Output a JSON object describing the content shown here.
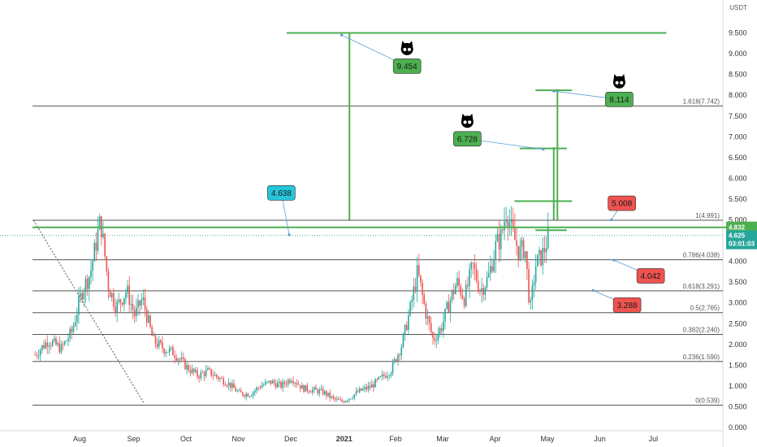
{
  "chart_data": {
    "type": "candlestick",
    "currency": "USDT",
    "ylim": [
      0,
      10
    ],
    "yticks": [
      "0.000",
      "0.500",
      "1.000",
      "1.500",
      "2.000",
      "2.500",
      "3.000",
      "3.500",
      "4.000",
      "4.500",
      "5.000",
      "5.500",
      "6.000",
      "6.500",
      "7.000",
      "7.500",
      "8.000",
      "8.500",
      "9.000",
      "9.500",
      "10.000"
    ],
    "xticks": [
      {
        "label": "Aug",
        "t": 0.9
      },
      {
        "label": "Sep",
        "t": 1.93
      },
      {
        "label": "Oct",
        "t": 2.93
      },
      {
        "label": "Nov",
        "t": 3.93
      },
      {
        "label": "Dec",
        "t": 4.93
      },
      {
        "label": "2021",
        "t": 5.95,
        "bold": true
      },
      {
        "label": "Feb",
        "t": 6.93
      },
      {
        "label": "Mar",
        "t": 7.83
      },
      {
        "label": "Apr",
        "t": 8.83
      },
      {
        "label": "May",
        "t": 9.83
      },
      {
        "label": "Jun",
        "t": 10.83
      },
      {
        "label": "Jul",
        "t": 11.85
      }
    ],
    "price_path": [
      [
        0.05,
        1.75
      ],
      [
        0.3,
        2.1
      ],
      [
        0.55,
        1.9
      ],
      [
        0.75,
        2.3
      ],
      [
        0.95,
        3.3
      ],
      [
        1.1,
        3.7
      ],
      [
        1.3,
        5.0
      ],
      [
        1.45,
        3.4
      ],
      [
        1.6,
        2.9
      ],
      [
        1.8,
        3.3
      ],
      [
        1.95,
        2.7
      ],
      [
        2.1,
        3.1
      ],
      [
        2.3,
        2.1
      ],
      [
        2.5,
        1.9
      ],
      [
        2.7,
        1.8
      ],
      [
        2.95,
        1.45
      ],
      [
        3.15,
        1.25
      ],
      [
        3.35,
        1.35
      ],
      [
        3.55,
        1.2
      ],
      [
        3.75,
        1.05
      ],
      [
        3.95,
        0.82
      ],
      [
        4.15,
        0.8
      ],
      [
        4.35,
        1.0
      ],
      [
        4.55,
        1.1
      ],
      [
        4.75,
        1.0
      ],
      [
        4.95,
        1.2
      ],
      [
        5.15,
        0.95
      ],
      [
        5.35,
        0.9
      ],
      [
        5.55,
        0.85
      ],
      [
        5.75,
        0.68
      ],
      [
        5.9,
        0.62
      ],
      [
        6.05,
        0.72
      ],
      [
        6.25,
        0.88
      ],
      [
        6.45,
        0.98
      ],
      [
        6.65,
        1.18
      ],
      [
        6.85,
        1.4
      ],
      [
        7.05,
        2.0
      ],
      [
        7.2,
        2.8
      ],
      [
        7.35,
        3.75
      ],
      [
        7.5,
        2.8
      ],
      [
        7.65,
        2.1
      ],
      [
        7.8,
        2.4
      ],
      [
        7.95,
        3.0
      ],
      [
        8.1,
        3.5
      ],
      [
        8.25,
        3.1
      ],
      [
        8.4,
        3.9
      ],
      [
        8.55,
        3.3
      ],
      [
        8.7,
        3.6
      ],
      [
        8.85,
        4.4
      ],
      [
        8.95,
        4.6
      ],
      [
        9.05,
        5.3
      ],
      [
        9.15,
        4.7
      ],
      [
        9.3,
        4.2
      ],
      [
        9.4,
        4.35
      ],
      [
        9.5,
        2.8
      ],
      [
        9.6,
        3.9
      ],
      [
        9.75,
        4.2
      ],
      [
        9.85,
        4.63
      ]
    ],
    "current_price": "4.832",
    "last_price": "4.625",
    "countdown": "03:01:03",
    "fib_levels": [
      {
        "label": "1.618(7.742)",
        "value": 7.742
      },
      {
        "label": "1(4.991)",
        "value": 4.991
      },
      {
        "label": "0.786(4.038)",
        "value": 4.038
      },
      {
        "label": "0.618(3.291)",
        "value": 3.291
      },
      {
        "label": "0.5(2.765)",
        "value": 2.765
      },
      {
        "label": "0.382(2.240)",
        "value": 2.24
      },
      {
        "label": "0.236(1.590)",
        "value": 1.59
      },
      {
        "label": "0(0.539)",
        "value": 0.539
      }
    ],
    "callouts": [
      {
        "text": "9.454",
        "color": "#4caf50",
        "tx": 5.9,
        "ty": 9.45,
        "bx": 7.15,
        "by": 8.7,
        "owl": true
      },
      {
        "text": "8.114",
        "color": "#4caf50",
        "tx": 9.95,
        "ty": 8.1,
        "bx": 11.2,
        "by": 7.9,
        "owl": true
      },
      {
        "text": "6.728",
        "color": "#4caf50",
        "tx": 9.75,
        "ty": 6.7,
        "bx": 8.3,
        "by": 6.95,
        "owl": true
      },
      {
        "text": "4.638",
        "color": "#26c6da",
        "tx": 4.9,
        "ty": 4.64,
        "bx": 4.75,
        "by": 5.65,
        "owl": false
      },
      {
        "text": "5.008",
        "color": "#ef5350",
        "tx": 11.05,
        "ty": 5.0,
        "bx": 11.25,
        "by": 5.4,
        "owl": false
      },
      {
        "text": "4.042",
        "color": "#ef5350",
        "tx": 11.1,
        "ty": 4.03,
        "bx": 11.8,
        "by": 3.65,
        "owl": false
      },
      {
        "text": "3.288",
        "color": "#ef5350",
        "tx": 10.7,
        "ty": 3.3,
        "bx": 11.35,
        "by": 2.95,
        "owl": false
      }
    ],
    "green_lines": [
      {
        "x1": 0,
        "y1": 4.82,
        "x2": 14.2,
        "y2": 4.82
      },
      {
        "x1": 4.85,
        "y1": 9.5,
        "x2": 12.1,
        "y2": 9.5
      },
      {
        "x1": 6.05,
        "y1": 9.5,
        "x2": 6.05,
        "y2": 5.0
      },
      {
        "x1": 9.2,
        "y1": 5.45,
        "x2": 10.3,
        "y2": 5.45
      },
      {
        "x1": 9.3,
        "y1": 6.72,
        "x2": 10.2,
        "y2": 6.72
      },
      {
        "x1": 9.95,
        "y1": 6.72,
        "x2": 9.95,
        "y2": 5.0
      },
      {
        "x1": 9.6,
        "y1": 8.12,
        "x2": 10.3,
        "y2": 8.12
      },
      {
        "x1": 10.02,
        "y1": 8.12,
        "x2": 10.02,
        "y2": 5.0
      },
      {
        "x1": 9.6,
        "y1": 4.75,
        "x2": 10.2,
        "y2": 4.75
      }
    ]
  }
}
